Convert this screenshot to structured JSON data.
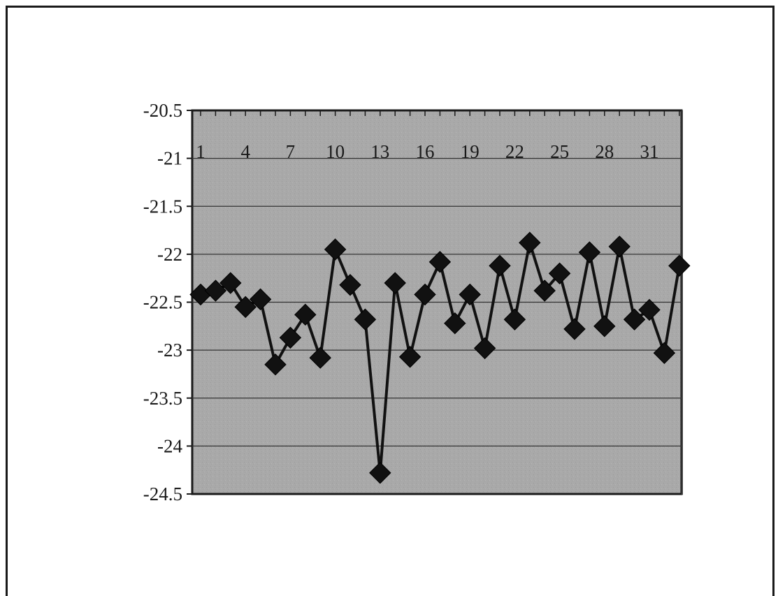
{
  "chart_data": {
    "type": "line",
    "title": "",
    "xlabel": "",
    "ylabel": "",
    "ylim": [
      -24.5,
      -20.5
    ],
    "y_ticks": [
      -20.5,
      -21,
      -21.5,
      -22,
      -22.5,
      -23,
      -23.5,
      -24,
      -24.5
    ],
    "y_tick_labels": [
      "-20.5",
      "-21",
      "-21.5",
      "-22",
      "-22.5",
      "-23",
      "-23.5",
      "-24",
      "-24.5"
    ],
    "x_tick_labels": [
      "1",
      "4",
      "7",
      "10",
      "13",
      "16",
      "19",
      "22",
      "25",
      "28",
      "31"
    ],
    "x": [
      1,
      2,
      3,
      4,
      5,
      6,
      7,
      8,
      9,
      10,
      11,
      12,
      13,
      14,
      15,
      16,
      17,
      18,
      19,
      20,
      21,
      22,
      23,
      24,
      25,
      26,
      27,
      28,
      29,
      30,
      31,
      32,
      33
    ],
    "series": [
      {
        "values": [
          -22.42,
          -22.38,
          -22.3,
          -22.55,
          -22.47,
          -23.15,
          -22.87,
          -22.63,
          -23.08,
          -21.95,
          -22.32,
          -22.68,
          -24.28,
          -22.3,
          -23.07,
          -22.42,
          -22.08,
          -22.72,
          -22.42,
          -22.98,
          -22.12,
          -22.68,
          -21.88,
          -22.38,
          -22.2,
          -22.78,
          -21.98,
          -22.75,
          -21.92,
          -22.68,
          -22.58,
          -23.03,
          -22.12
        ]
      }
    ],
    "grid": true,
    "colors": {
      "plot_background": "#a9a9a9",
      "line": "#111111",
      "marker": "#111111",
      "gridline": "#333333",
      "frame": "#1a1a1a"
    }
  }
}
